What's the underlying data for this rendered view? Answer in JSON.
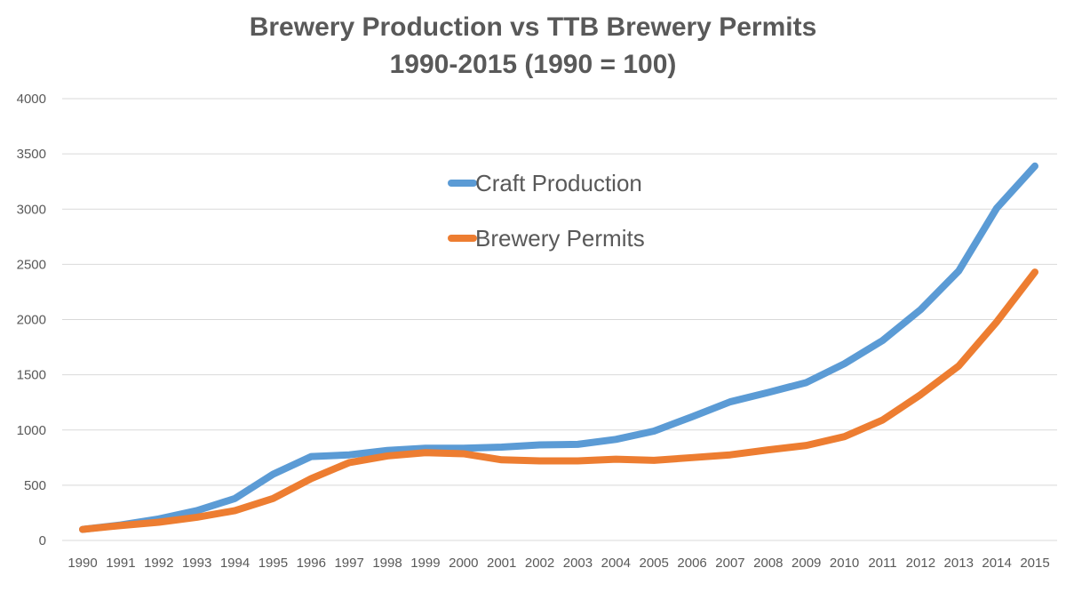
{
  "chart_data": {
    "type": "line",
    "title": "Brewery Production vs TTB Brewery Permits",
    "subtitle": "1990-2015 (1990 = 100)",
    "xlabel": "",
    "ylabel": "",
    "ylim": [
      0,
      4000
    ],
    "yticks": [
      "0",
      "500",
      "1000",
      "1500",
      "2000",
      "2500",
      "3000",
      "3500",
      "4000"
    ],
    "grid": true,
    "legend_position": "top-center",
    "categories": [
      "1990",
      "1991",
      "1992",
      "1993",
      "1994",
      "1995",
      "1996",
      "1997",
      "1998",
      "1999",
      "2000",
      "2001",
      "2002",
      "2003",
      "2004",
      "2005",
      "2006",
      "2007",
      "2008",
      "2009",
      "2010",
      "2011",
      "2012",
      "2013",
      "2014",
      "2015"
    ],
    "series": [
      {
        "name": "Craft Production",
        "color": "#5B9BD5",
        "values": [
          100,
          140,
          195,
          270,
          380,
          600,
          760,
          775,
          815,
          835,
          835,
          845,
          865,
          870,
          915,
          990,
          1120,
          1255,
          1340,
          1430,
          1600,
          1810,
          2090,
          2440,
          3010,
          3390
        ]
      },
      {
        "name": "Brewery Permits",
        "color": "#ED7D31",
        "values": [
          100,
          135,
          165,
          210,
          270,
          380,
          560,
          705,
          765,
          795,
          785,
          730,
          720,
          720,
          735,
          725,
          750,
          775,
          820,
          860,
          940,
          1090,
          1320,
          1580,
          1980,
          2430
        ]
      }
    ]
  }
}
